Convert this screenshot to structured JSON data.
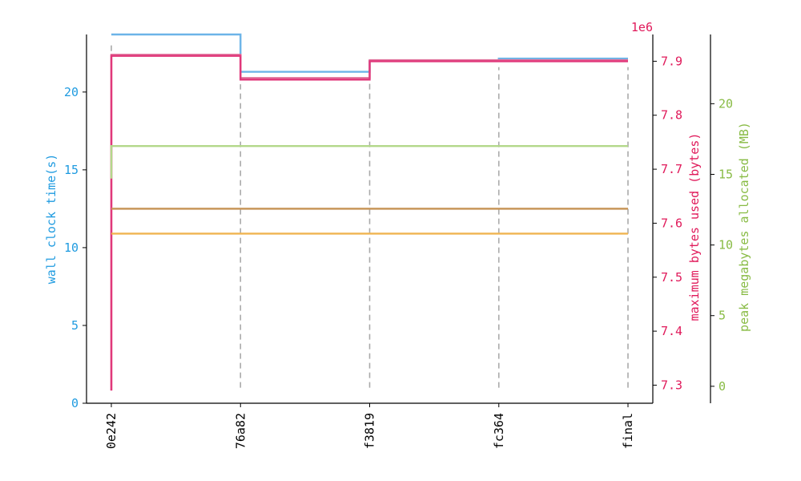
{
  "chart_data": {
    "type": "line",
    "step": "post",
    "x_categories": [
      "0e242",
      "76a82",
      "f3819",
      "fc364",
      "final"
    ],
    "axes": {
      "left": {
        "label": "wall clock time(s)",
        "color": "#1f9be0",
        "range": [
          0,
          23.7
        ],
        "ticks": [
          0,
          5,
          10,
          15,
          20
        ]
      },
      "right1": {
        "label": "maximum bytes used (bytes)",
        "color": "#e0195a",
        "offset_text": "1e6",
        "range": [
          7.2665,
          7.9496
        ],
        "ticks": [
          7.3,
          7.4,
          7.5,
          7.6,
          7.7,
          7.8,
          7.9
        ],
        "tick_labels": [
          "7.3",
          "7.4",
          "7.5",
          "7.6",
          "7.7",
          "7.8",
          "7.9"
        ]
      },
      "right2": {
        "label": "peak megabytes allocated (MB)",
        "color": "#88bb44",
        "range": [
          -1.2,
          24.9
        ],
        "ticks": [
          0,
          5,
          10,
          15,
          20
        ]
      }
    },
    "series": [
      {
        "axis": "left",
        "color": "#6cb4e8",
        "start_value": 23.7,
        "values": [
          23.7,
          21.3,
          22.0,
          22.15,
          22.15
        ]
      },
      {
        "axis": "right1",
        "color": "#e0709a",
        "start_value": 7.29,
        "values": [
          7.912,
          7.869,
          7.902,
          7.902,
          7.902
        ]
      },
      {
        "axis": "right1",
        "color": "#e0377a",
        "start_value": 7.29,
        "values": [
          7.91,
          7.866,
          7.9,
          7.9,
          7.9
        ]
      },
      {
        "axis": "right2",
        "color": "#b3d88a",
        "start_value": 14.7,
        "values": [
          17.0,
          17.0,
          17.0,
          17.0,
          17.0
        ]
      },
      {
        "axis": "left",
        "color": "#c8965a",
        "values": [
          12.5,
          12.5,
          12.5,
          12.5,
          12.5
        ]
      },
      {
        "axis": "left",
        "color": "#f0b450",
        "values": [
          10.9,
          10.9,
          10.9,
          10.9,
          10.9
        ]
      }
    ],
    "vertical_markers": {
      "color": "#aaaaaa",
      "ranges": [
        [
          1.0,
          23.0
        ],
        [
          1.0,
          20.5
        ],
        [
          1.0,
          21.4
        ],
        [
          1.0,
          21.6
        ],
        [
          1.0,
          21.6
        ]
      ]
    }
  }
}
